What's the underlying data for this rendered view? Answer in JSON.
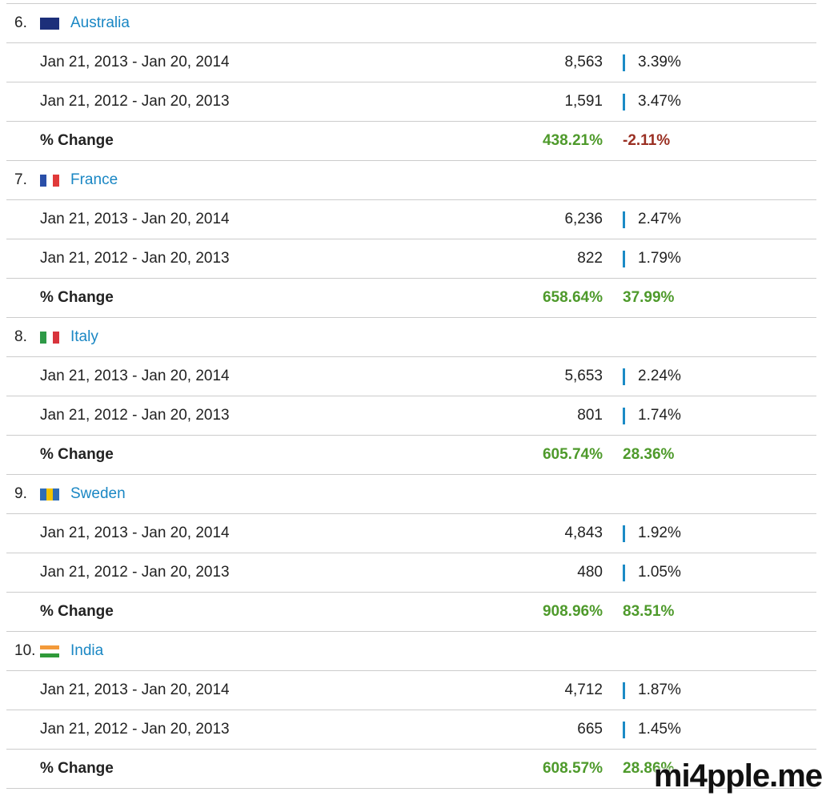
{
  "rows": [
    {
      "rank": "6.",
      "country": "Australia",
      "periods": [
        {
          "range": "Jan 21, 2013 - Jan 20, 2014",
          "value": "8,563",
          "share": "3.39%"
        },
        {
          "range": "Jan 21, 2012 - Jan 20, 2013",
          "value": "1,591",
          "share": "3.47%"
        }
      ],
      "change": {
        "label": "% Change",
        "value": "438.21%",
        "share": "-2.11%"
      }
    },
    {
      "rank": "7.",
      "country": "France",
      "periods": [
        {
          "range": "Jan 21, 2013 - Jan 20, 2014",
          "value": "6,236",
          "share": "2.47%"
        },
        {
          "range": "Jan 21, 2012 - Jan 20, 2013",
          "value": "822",
          "share": "1.79%"
        }
      ],
      "change": {
        "label": "% Change",
        "value": "658.64%",
        "share": "37.99%"
      }
    },
    {
      "rank": "8.",
      "country": "Italy",
      "periods": [
        {
          "range": "Jan 21, 2013 - Jan 20, 2014",
          "value": "5,653",
          "share": "2.24%"
        },
        {
          "range": "Jan 21, 2012 - Jan 20, 2013",
          "value": "801",
          "share": "1.74%"
        }
      ],
      "change": {
        "label": "% Change",
        "value": "605.74%",
        "share": "28.36%"
      }
    },
    {
      "rank": "9.",
      "country": "Sweden",
      "periods": [
        {
          "range": "Jan 21, 2013 - Jan 20, 2014",
          "value": "4,843",
          "share": "1.92%"
        },
        {
          "range": "Jan 21, 2012 - Jan 20, 2013",
          "value": "480",
          "share": "1.05%"
        }
      ],
      "change": {
        "label": "% Change",
        "value": "908.96%",
        "share": "83.51%"
      }
    },
    {
      "rank": "10.",
      "country": "India",
      "periods": [
        {
          "range": "Jan 21, 2013 - Jan 20, 2014",
          "value": "4,712",
          "share": "1.87%"
        },
        {
          "range": "Jan 21, 2012 - Jan 20, 2013",
          "value": "665",
          "share": "1.45%"
        }
      ],
      "change": {
        "label": "% Change",
        "value": "608.57%",
        "share": "28.86%"
      }
    }
  ],
  "watermark": "mi4pple.me"
}
